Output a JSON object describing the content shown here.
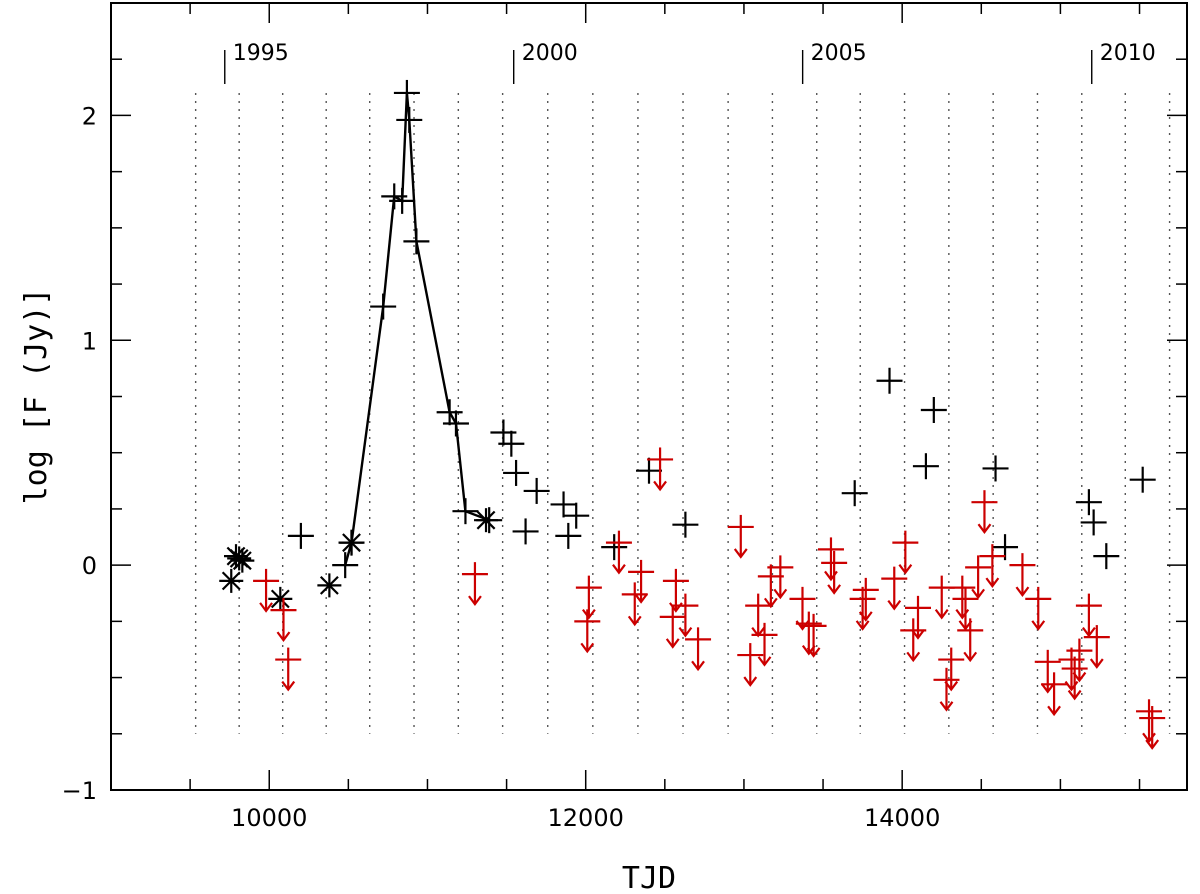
{
  "chart_data": {
    "type": "scatter",
    "title": "",
    "xlabel": "TJD",
    "ylabel": "log [F (Jy)]",
    "xlim": [
      9000,
      15800
    ],
    "ylim": [
      -1,
      2.5
    ],
    "x_ticks": [
      10000,
      12000,
      14000
    ],
    "x_tick_labels": [
      "10000",
      "12000",
      "14000"
    ],
    "x_minor_step": 500,
    "y_ticks": [
      -1,
      0,
      1,
      2
    ],
    "y_tick_labels": [
      "−1",
      "0",
      "1",
      "2"
    ],
    "y_minor_step": 0.25,
    "year_markers": [
      {
        "label": "1995",
        "tjd": 9719
      },
      {
        "label": "2000",
        "tjd": 11545
      },
      {
        "label": "2005",
        "tjd": 13371
      },
      {
        "label": "2010",
        "tjd": 15198
      }
    ],
    "vertical_dotted_lines_x": [
      9535,
      9810,
      10085,
      10360,
      10635,
      10915,
      11195,
      11475,
      11760,
      12045,
      12330,
      12615,
      12900,
      13180,
      13460,
      13735,
      14015,
      14295,
      14575,
      14855,
      15135,
      15410,
      15690
    ],
    "colors": {
      "detections": "#000000",
      "upper_limits": "#cc0000"
    },
    "series": [
      {
        "name": "detections-connected",
        "marker": "plus",
        "color": "#000000",
        "line": true,
        "points": [
          [
            10480,
            0.0
          ],
          [
            10520,
            0.1
          ],
          [
            10720,
            1.15
          ],
          [
            10790,
            1.64
          ],
          [
            10840,
            1.62
          ],
          [
            10870,
            2.1
          ],
          [
            10885,
            1.98
          ],
          [
            10930,
            1.44
          ],
          [
            11140,
            0.68
          ],
          [
            11180,
            0.63
          ],
          [
            11240,
            0.24
          ],
          [
            11390,
            0.2
          ]
        ]
      },
      {
        "name": "detections",
        "marker": "plus",
        "color": "#000000",
        "points": [
          [
            10200,
            0.13
          ],
          [
            11480,
            0.59
          ],
          [
            11530,
            0.54
          ],
          [
            11560,
            0.41
          ],
          [
            11620,
            0.15
          ],
          [
            11690,
            0.33
          ],
          [
            11860,
            0.27
          ],
          [
            11890,
            0.13
          ],
          [
            11940,
            0.22
          ],
          [
            12180,
            0.08
          ],
          [
            12400,
            0.42
          ],
          [
            12630,
            0.18
          ],
          [
            13700,
            0.32
          ],
          [
            13920,
            0.82
          ],
          [
            14150,
            0.44
          ],
          [
            14200,
            0.69
          ],
          [
            14590,
            0.43
          ],
          [
            14650,
            0.08
          ],
          [
            15180,
            0.28
          ],
          [
            15210,
            0.19
          ],
          [
            15290,
            0.04
          ],
          [
            15520,
            0.38
          ]
        ]
      },
      {
        "name": "detections-asterisk",
        "marker": "asterisk",
        "color": "#000000",
        "points": [
          [
            9760,
            -0.07
          ],
          [
            9790,
            0.04
          ],
          [
            9810,
            0.03
          ],
          [
            9830,
            0.02
          ],
          [
            10070,
            -0.15
          ],
          [
            10380,
            -0.09
          ],
          [
            10520,
            0.1
          ],
          [
            11370,
            0.2
          ]
        ]
      },
      {
        "name": "upper-limits",
        "marker": "plus-arrow-down",
        "color": "#cc0000",
        "points": [
          [
            9980,
            -0.07
          ],
          [
            10090,
            -0.2
          ],
          [
            10120,
            -0.42
          ],
          [
            11300,
            -0.04
          ],
          [
            12020,
            -0.1
          ],
          [
            12010,
            -0.25
          ],
          [
            12210,
            0.1
          ],
          [
            12310,
            -0.13
          ],
          [
            12350,
            -0.03
          ],
          [
            12470,
            0.47
          ],
          [
            12550,
            -0.23
          ],
          [
            12570,
            -0.07
          ],
          [
            12630,
            -0.18
          ],
          [
            12710,
            -0.33
          ],
          [
            12980,
            0.17
          ],
          [
            13040,
            -0.4
          ],
          [
            13090,
            -0.18
          ],
          [
            13130,
            -0.31
          ],
          [
            13170,
            -0.05
          ],
          [
            13230,
            -0.01
          ],
          [
            13370,
            -0.15
          ],
          [
            13410,
            -0.26
          ],
          [
            13440,
            -0.27
          ],
          [
            13550,
            0.07
          ],
          [
            13570,
            0.01
          ],
          [
            13750,
            -0.15
          ],
          [
            13770,
            -0.11
          ],
          [
            13950,
            -0.06
          ],
          [
            14020,
            0.1
          ],
          [
            14070,
            -0.29
          ],
          [
            14100,
            -0.19
          ],
          [
            14250,
            -0.1
          ],
          [
            14280,
            -0.51
          ],
          [
            14310,
            -0.42
          ],
          [
            14380,
            -0.1
          ],
          [
            14400,
            -0.15
          ],
          [
            14430,
            -0.29
          ],
          [
            14480,
            -0.01
          ],
          [
            14520,
            0.28
          ],
          [
            14570,
            0.04
          ],
          [
            14760,
            0.0
          ],
          [
            14860,
            -0.15
          ],
          [
            14920,
            -0.43
          ],
          [
            14960,
            -0.53
          ],
          [
            15070,
            -0.42
          ],
          [
            15090,
            -0.46
          ],
          [
            15120,
            -0.38
          ],
          [
            15180,
            -0.18
          ],
          [
            15230,
            -0.32
          ],
          [
            15560,
            -0.65
          ],
          [
            15580,
            -0.68
          ]
        ]
      }
    ]
  }
}
